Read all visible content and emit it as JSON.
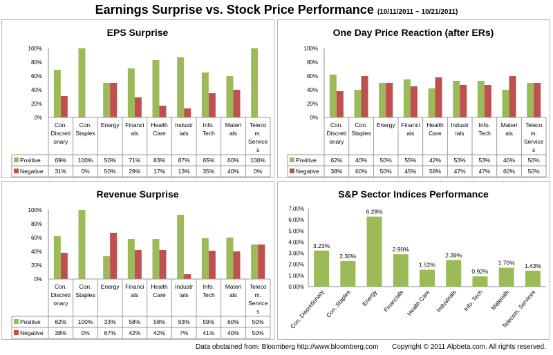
{
  "title": "Earnings Surprise vs. Stock Price Performance",
  "date_range": "(10/11/2011 ~ 10/21/2011)",
  "footer": {
    "source": "Data obstained from:  Bloomberg http://www.bloomberg.com",
    "copyright": "Copyright © 2011 Alpbeta.com. All rights reserved."
  },
  "colors": {
    "positive": "#9bbb59",
    "negative": "#c0504d"
  },
  "chart_data": [
    {
      "type": "bar",
      "title": "EPS Surprise",
      "categories": [
        "Con. Discretionary",
        "Con. Staples",
        "Energy",
        "Financials",
        "Health Care",
        "Industrials",
        "Info. Tech",
        "Materials",
        "Telecom. Services"
      ],
      "category_labels": [
        [
          "Con.",
          "Discreti",
          "onary"
        ],
        [
          "Con.",
          "Staples"
        ],
        [
          "Energy"
        ],
        [
          "Financi",
          "als"
        ],
        [
          "Health",
          "Care"
        ],
        [
          "Industr",
          "ials"
        ],
        [
          "Info.",
          "Tech"
        ],
        [
          "Materi",
          "als"
        ],
        [
          "Teleco",
          "m.",
          "Service",
          "s"
        ]
      ],
      "yticks": [
        "0%",
        "20%",
        "40%",
        "60%",
        "80%",
        "100%"
      ],
      "ylim": [
        0,
        100
      ],
      "series": [
        {
          "name": "Positive",
          "values": [
            69,
            100,
            50,
            71,
            83,
            87,
            65,
            60,
            100
          ],
          "labels": [
            "69%",
            "100%",
            "50%",
            "71%",
            "83%",
            "87%",
            "65%",
            "60%",
            "100%"
          ]
        },
        {
          "name": "Negative",
          "values": [
            31,
            0,
            50,
            29,
            17,
            13,
            35,
            40,
            0
          ],
          "labels": [
            "31%",
            "0%",
            "50%",
            "29%",
            "17%",
            "13%",
            "35%",
            "40%",
            "0%"
          ]
        }
      ]
    },
    {
      "type": "bar",
      "title": "One Day Price Reaction (after ERs)",
      "categories": [
        "Con. Discretionary",
        "Con. Staples",
        "Energy",
        "Financials",
        "Health Care",
        "Industrials",
        "Info. Tech",
        "Materials",
        "Telecom. Services"
      ],
      "category_labels": [
        [
          "Con.",
          "Discreti",
          "onary"
        ],
        [
          "Con.",
          "Staples"
        ],
        [
          "Energy"
        ],
        [
          "Financi",
          "als"
        ],
        [
          "Health",
          "Care"
        ],
        [
          "Industr",
          "ials"
        ],
        [
          "Info.",
          "Tech"
        ],
        [
          "Materi",
          "als"
        ],
        [
          "Teleco",
          "m.",
          "Service",
          "s"
        ]
      ],
      "yticks": [
        "0%",
        "20%",
        "40%",
        "60%",
        "80%",
        "100%"
      ],
      "ylim": [
        0,
        100
      ],
      "series": [
        {
          "name": "Positive",
          "values": [
            62,
            40,
            50,
            55,
            42,
            53,
            53,
            40,
            50
          ],
          "labels": [
            "62%",
            "40%",
            "50%",
            "55%",
            "42%",
            "53%",
            "53%",
            "40%",
            "50%"
          ]
        },
        {
          "name": "Negative",
          "values": [
            38,
            60,
            50,
            45,
            58,
            47,
            47,
            60,
            50
          ],
          "labels": [
            "38%",
            "60%",
            "50%",
            "45%",
            "58%",
            "47%",
            "47%",
            "60%",
            "50%"
          ]
        }
      ]
    },
    {
      "type": "bar",
      "title": "Revenue Surprise",
      "categories": [
        "Con. Discretionary",
        "Con. Staples",
        "Energy",
        "Financials",
        "Health Care",
        "Industrials",
        "Info. Tech",
        "Materials",
        "Telecom. Services"
      ],
      "category_labels": [
        [
          "Con.",
          "Discreti",
          "onary"
        ],
        [
          "Con.",
          "Staples"
        ],
        [
          "Energy"
        ],
        [
          "Financi",
          "als"
        ],
        [
          "Health",
          "Care"
        ],
        [
          "Industr",
          "ials"
        ],
        [
          "Info.",
          "Tech"
        ],
        [
          "Materi",
          "als"
        ],
        [
          "Teleco",
          "m.",
          "Service",
          "s"
        ]
      ],
      "yticks": [
        "0%",
        "20%",
        "40%",
        "60%",
        "80%",
        "100%"
      ],
      "ylim": [
        0,
        100
      ],
      "series": [
        {
          "name": "Positive",
          "values": [
            62,
            100,
            33,
            58,
            58,
            93,
            59,
            60,
            50
          ],
          "labels": [
            "62%",
            "100%",
            "33%",
            "58%",
            "58%",
            "93%",
            "59%",
            "60%",
            "50%"
          ]
        },
        {
          "name": "Negative",
          "values": [
            38,
            0,
            67,
            42,
            42,
            7,
            41,
            40,
            50
          ],
          "labels": [
            "38%",
            "0%",
            "67%",
            "42%",
            "42%",
            "7%",
            "41%",
            "40%",
            "50%"
          ]
        }
      ]
    },
    {
      "type": "bar",
      "title": "S&P Sector Indices Performance",
      "categories": [
        "Con. Discretionary",
        "Con. Staples",
        "Energy",
        "Financials",
        "Health Care",
        "Industrials",
        "Info. Tech",
        "Materials",
        "Telecom. Services"
      ],
      "yticks": [
        "0.00%",
        "1.00%",
        "2.00%",
        "3.00%",
        "4.00%",
        "5.00%",
        "6.00%",
        "7.00%"
      ],
      "ylim": [
        0,
        7
      ],
      "values": [
        3.23,
        2.3,
        6.28,
        2.9,
        1.52,
        2.39,
        0.92,
        1.7,
        1.43
      ],
      "data_labels": [
        "3.23%",
        "2.30%",
        "6.28%",
        "2.90%",
        "1.52%",
        "2.39%",
        "0.92%",
        "1.70%",
        "1.43%"
      ]
    }
  ]
}
